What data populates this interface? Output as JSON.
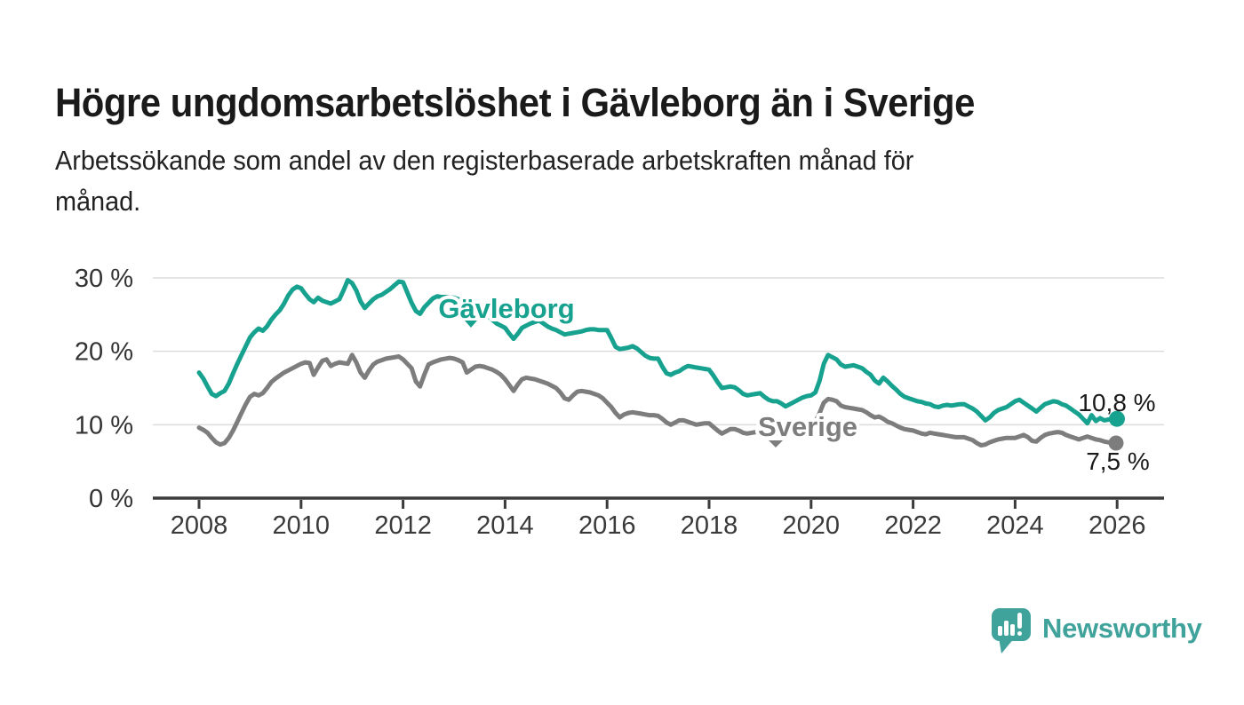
{
  "chart_data": {
    "type": "line",
    "title": "Högre ungdomsarbetslöshet i Gävleborg än i Sverige",
    "subtitle_lines": [
      "Arbetssökande som andel av den registerbaserade arbetskraften månad för",
      "månad."
    ],
    "unit": "%",
    "x_start": "2008-01",
    "x_end": "2026-01",
    "frequency": "monthly",
    "x_ticks": [
      "2008",
      "2010",
      "2012",
      "2014",
      "2016",
      "2018",
      "2020",
      "2022",
      "2024",
      "2026"
    ],
    "y_ticks": [
      {
        "value": 0,
        "label": "0 %"
      },
      {
        "value": 10,
        "label": "10 %"
      },
      {
        "value": 20,
        "label": "20 %"
      },
      {
        "value": 30,
        "label": "30 %"
      }
    ],
    "ylim": [
      0,
      33
    ],
    "grid": "horizontal",
    "legend": "inline-labels",
    "series": [
      {
        "name": "Gävleborg",
        "color": "#17a18f",
        "end_value": 10.8,
        "end_value_label": "10,8 %",
        "values": [
          17.1,
          16.3,
          15.2,
          14.2,
          13.9,
          14.3,
          14.6,
          15.6,
          17.0,
          18.3,
          19.5,
          20.7,
          21.9,
          22.6,
          23.1,
          22.8,
          23.4,
          24.3,
          25.0,
          25.6,
          26.5,
          27.6,
          28.4,
          28.8,
          28.6,
          27.8,
          27.1,
          26.7,
          27.3,
          26.9,
          26.7,
          26.5,
          26.8,
          27.1,
          28.3,
          29.7,
          29.3,
          28.3,
          26.8,
          25.9,
          26.5,
          27.1,
          27.5,
          27.7,
          28.1,
          28.5,
          29.0,
          29.5,
          29.4,
          28.0,
          26.6,
          25.5,
          25.1,
          26.0,
          26.6,
          27.2,
          27.5,
          27.4,
          27.4,
          27.3,
          27.3,
          27.1,
          26.8,
          26.5,
          26.2,
          25.9,
          25.6,
          25.2,
          24.8,
          24.3,
          23.8,
          23.5,
          23.2,
          22.4,
          21.7,
          22.4,
          23.2,
          23.5,
          23.8,
          24.0,
          24.2,
          23.8,
          23.4,
          23.1,
          22.9,
          22.6,
          22.3,
          22.4,
          22.5,
          22.6,
          22.7,
          22.9,
          23.0,
          23.0,
          22.9,
          22.9,
          22.9,
          21.8,
          20.6,
          20.3,
          20.4,
          20.5,
          20.7,
          20.4,
          19.9,
          19.4,
          19.1,
          19.0,
          19.0,
          17.9,
          17.0,
          16.8,
          17.1,
          17.3,
          17.7,
          18.0,
          17.9,
          17.8,
          17.7,
          17.6,
          17.5,
          16.7,
          15.8,
          15.0,
          15.1,
          15.2,
          15.1,
          14.7,
          14.2,
          14.0,
          14.1,
          14.2,
          14.3,
          13.8,
          13.4,
          13.2,
          13.2,
          12.9,
          12.5,
          12.8,
          13.1,
          13.4,
          13.7,
          13.9,
          14.0,
          14.4,
          16.0,
          18.3,
          19.5,
          19.2,
          18.9,
          18.2,
          17.9,
          18.0,
          18.1,
          17.9,
          17.7,
          17.2,
          16.8,
          16.0,
          15.6,
          16.4,
          15.9,
          15.3,
          14.8,
          14.2,
          13.8,
          13.6,
          13.4,
          13.2,
          13.1,
          12.9,
          12.8,
          12.5,
          12.4,
          12.6,
          12.7,
          12.6,
          12.7,
          12.8,
          12.8,
          12.5,
          12.2,
          11.8,
          11.2,
          10.6,
          11.0,
          11.6,
          12.0,
          12.2,
          12.4,
          12.8,
          13.2,
          13.4,
          13.0,
          12.6,
          12.2,
          11.8,
          12.3,
          12.8,
          13.0,
          13.2,
          13.1,
          12.8,
          12.6,
          12.2,
          11.8,
          11.4,
          10.8,
          10.2,
          11.3,
          10.5,
          10.9,
          10.6,
          10.7,
          10.7,
          10.8
        ]
      },
      {
        "name": "Sverige",
        "color": "#7d7d7d",
        "end_value": 7.5,
        "end_value_label": "7,5 %",
        "values": [
          9.6,
          9.3,
          8.9,
          8.2,
          7.6,
          7.3,
          7.5,
          8.2,
          9.2,
          10.4,
          11.6,
          12.8,
          13.8,
          14.2,
          14.0,
          14.3,
          15.0,
          15.8,
          16.3,
          16.7,
          17.1,
          17.4,
          17.7,
          18.0,
          18.3,
          18.5,
          18.4,
          16.8,
          17.8,
          18.7,
          18.9,
          18.0,
          18.3,
          18.5,
          18.4,
          18.3,
          19.5,
          18.5,
          17.1,
          16.4,
          17.4,
          18.2,
          18.6,
          18.8,
          19.0,
          19.1,
          19.2,
          19.3,
          18.9,
          18.3,
          17.7,
          15.9,
          15.2,
          16.8,
          18.2,
          18.5,
          18.7,
          18.9,
          19.0,
          19.1,
          19.0,
          18.8,
          18.5,
          17.1,
          17.5,
          17.9,
          18.0,
          17.9,
          17.7,
          17.5,
          17.2,
          16.8,
          16.2,
          15.4,
          14.6,
          15.5,
          16.2,
          16.4,
          16.3,
          16.2,
          16.0,
          15.8,
          15.6,
          15.3,
          15.0,
          14.4,
          13.6,
          13.4,
          14.0,
          14.5,
          14.6,
          14.5,
          14.4,
          14.2,
          14.0,
          13.6,
          13.0,
          12.4,
          11.6,
          11.0,
          11.4,
          11.6,
          11.7,
          11.6,
          11.5,
          11.4,
          11.3,
          11.3,
          11.2,
          10.8,
          10.3,
          10.0,
          10.3,
          10.6,
          10.6,
          10.4,
          10.2,
          10.0,
          10.1,
          10.2,
          10.2,
          9.7,
          9.2,
          8.8,
          9.1,
          9.4,
          9.4,
          9.2,
          8.9,
          8.8,
          8.9,
          9.0,
          9.0,
          8.9,
          8.8,
          8.7,
          8.8,
          9.0,
          9.1,
          9.0,
          9.0,
          9.1,
          9.3,
          9.6,
          10.0,
          10.4,
          11.6,
          13.0,
          13.5,
          13.4,
          13.2,
          12.6,
          12.4,
          12.3,
          12.2,
          12.1,
          12.0,
          11.7,
          11.3,
          11.0,
          11.1,
          10.8,
          10.4,
          10.2,
          9.9,
          9.6,
          9.4,
          9.3,
          9.2,
          9.0,
          8.8,
          8.7,
          8.9,
          8.8,
          8.7,
          8.6,
          8.5,
          8.4,
          8.3,
          8.3,
          8.3,
          8.1,
          7.9,
          7.5,
          7.2,
          7.3,
          7.6,
          7.8,
          8.0,
          8.1,
          8.2,
          8.2,
          8.2,
          8.4,
          8.6,
          8.3,
          7.8,
          7.7,
          8.2,
          8.6,
          8.8,
          8.9,
          9.0,
          8.9,
          8.6,
          8.4,
          8.2,
          8.0,
          8.2,
          8.4,
          8.2,
          8.0,
          7.9,
          7.7,
          7.6,
          7.5,
          7.5
        ]
      }
    ],
    "colors": {
      "gavleborg_line": "#17a18f",
      "sverige_line": "#7d7d7d",
      "axis": "#3b3b3b",
      "gridline": "#dcdcdc",
      "tick_text": "#333333"
    }
  },
  "footer": {
    "brand": "Newsworthy",
    "brand_color": "#3fa29b"
  }
}
